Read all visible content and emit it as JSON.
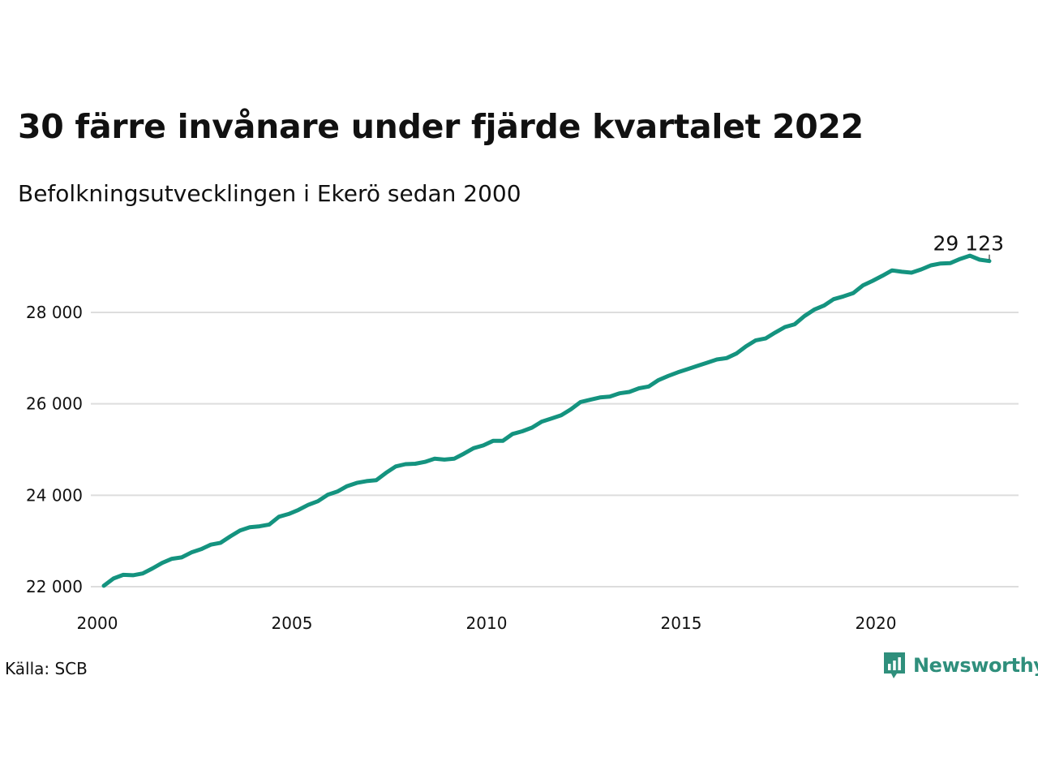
{
  "title": "30 färre invånare under fjärde kvartalet 2022",
  "subtitle": "Befolkningsutvecklingen i Ekerö sedan 2000",
  "source": "Källa: SCB",
  "brand": {
    "name": "Newsworthy",
    "icon": "bar-chart-speech-bubble-icon",
    "color": "#2f8f7c"
  },
  "colors": {
    "line": "#14937f",
    "grid": "#dddddd",
    "text": "#111111"
  },
  "chart_data": {
    "type": "line",
    "title": "30 färre invånare under fjärde kvartalet 2022",
    "subtitle": "Befolkningsutvecklingen i Ekerö sedan 2000",
    "xlabel": "",
    "ylabel": "",
    "xlim": [
      2000,
      2023.75
    ],
    "ylim": [
      22000,
      29300
    ],
    "grid": true,
    "x_ticks": [
      2000,
      2005,
      2010,
      2015,
      2020
    ],
    "x_tick_labels": [
      "2000",
      "2005",
      "2010",
      "2015",
      "2020"
    ],
    "y_ticks": [
      22000,
      24000,
      26000,
      28000
    ],
    "y_tick_labels": [
      "22 000",
      "24 000",
      "26 000",
      "28 000"
    ],
    "end_label": "29 123",
    "series": [
      {
        "x": [
          2000.0,
          2000.25,
          2000.5,
          2000.75,
          2001.0,
          2001.25,
          2001.5,
          2001.75,
          2002.0,
          2002.25,
          2002.5,
          2002.75,
          2003.0,
          2003.25,
          2003.5,
          2003.75,
          2004.0,
          2004.25,
          2004.5,
          2004.75,
          2005.0,
          2005.25,
          2005.5,
          2005.75,
          2006.0,
          2006.25,
          2006.5,
          2006.75,
          2007.0,
          2007.25,
          2007.5,
          2007.75,
          2008.0,
          2008.25,
          2008.5,
          2008.75,
          2009.0,
          2009.25,
          2009.5,
          2009.75,
          2010.0,
          2010.25,
          2010.5,
          2010.75,
          2011.0,
          2011.25,
          2011.5,
          2011.75,
          2012.0,
          2012.25,
          2012.5,
          2012.75,
          2013.0,
          2013.25,
          2013.5,
          2013.75,
          2014.0,
          2014.25,
          2014.5,
          2014.75,
          2015.0,
          2015.25,
          2015.5,
          2015.75,
          2016.0,
          2016.25,
          2016.5,
          2016.75,
          2017.0,
          2017.25,
          2017.5,
          2017.75,
          2018.0,
          2018.25,
          2018.5,
          2018.75,
          2019.0,
          2019.25,
          2019.5,
          2019.75,
          2020.0,
          2020.25,
          2020.5,
          2020.75,
          2021.0,
          2021.25,
          2021.5,
          2021.75,
          2022.0,
          2022.25,
          2022.5,
          2022.75
        ],
        "y": [
          22020,
          22180,
          22260,
          22250,
          22290,
          22400,
          22520,
          22610,
          22640,
          22750,
          22820,
          22920,
          22960,
          23100,
          23230,
          23300,
          23320,
          23360,
          23530,
          23590,
          23680,
          23790,
          23870,
          24010,
          24080,
          24200,
          24270,
          24310,
          24330,
          24490,
          24630,
          24680,
          24690,
          24730,
          24800,
          24780,
          24800,
          24910,
          25030,
          25090,
          25190,
          25190,
          25340,
          25400,
          25480,
          25610,
          25680,
          25750,
          25880,
          26040,
          26090,
          26140,
          26160,
          26230,
          26260,
          26340,
          26380,
          26520,
          26610,
          26690,
          26760,
          26830,
          26900,
          26970,
          27000,
          27100,
          27260,
          27390,
          27430,
          27560,
          27680,
          27740,
          27920,
          28060,
          28150,
          28290,
          28350,
          28420,
          28590,
          28690,
          28800,
          28920,
          28890,
          28870,
          28940,
          29030,
          29070,
          29080,
          29170,
          29240,
          29153,
          29123
        ]
      }
    ]
  }
}
